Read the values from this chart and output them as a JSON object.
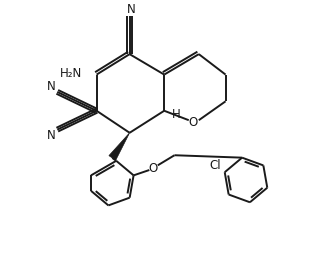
{
  "background_color": "#ffffff",
  "line_color": "#1a1a1a",
  "line_width": 1.4,
  "font_size": 8.5,
  "figsize": [
    3.19,
    2.71
  ],
  "dpi": 100,
  "xlim": [
    0,
    10
  ],
  "ylim": [
    0,
    8.5
  ]
}
